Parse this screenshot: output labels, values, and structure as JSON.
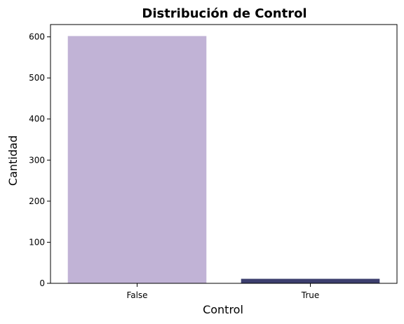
{
  "chart_data": {
    "type": "bar",
    "title": "Distribución de Control",
    "xlabel": "Control",
    "ylabel": "Cantidad",
    "categories": [
      "False",
      "True"
    ],
    "values": [
      602,
      11
    ],
    "colors": [
      "#c1b3d6",
      "#3d3f6e"
    ],
    "ylim": [
      0,
      630
    ],
    "yticks": [
      0,
      100,
      200,
      300,
      400,
      500,
      600
    ],
    "grid": false,
    "legend": "none"
  }
}
